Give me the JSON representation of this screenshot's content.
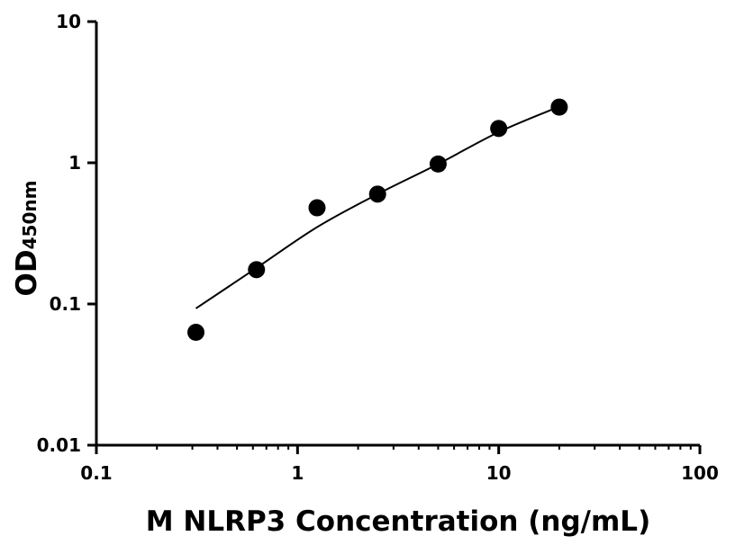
{
  "chart_data": {
    "type": "scatter",
    "title": "",
    "xlabel": "M NLRP3 Concentration (ng/mL)",
    "ylabel": "OD",
    "ylabel_subscript": "450nm",
    "xscale": "log",
    "yscale": "log",
    "xlim": [
      0.1,
      100
    ],
    "ylim": [
      0.01,
      10
    ],
    "xticks": [
      "0.1",
      "1",
      "10",
      "100"
    ],
    "yticks": [
      "0.01",
      "0.1",
      "1",
      "10"
    ],
    "grid": false,
    "legend": "none",
    "points": {
      "x": [
        0.3125,
        0.625,
        1.25,
        2.5,
        5,
        10,
        20
      ],
      "y": [
        0.063,
        0.175,
        0.48,
        0.6,
        0.98,
        1.75,
        2.48
      ]
    },
    "fit_curve": {
      "x": [
        0.3125,
        0.625,
        1.25,
        2.5,
        5,
        10,
        20
      ],
      "y": [
        0.093,
        0.18,
        0.35,
        0.6,
        0.98,
        1.65,
        2.5
      ]
    },
    "color": "#000000"
  }
}
